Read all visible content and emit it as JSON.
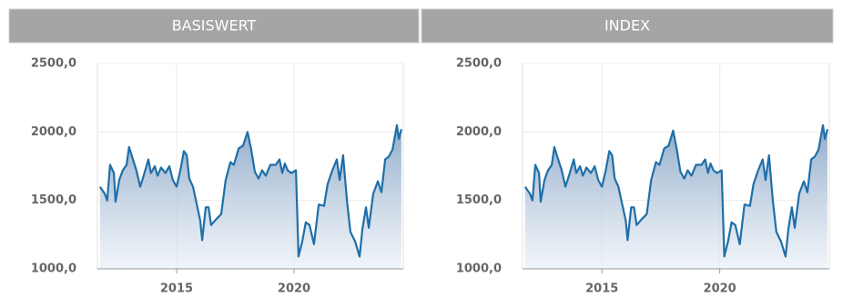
{
  "chart_data": [
    {
      "type": "line",
      "title": "BASISWERT",
      "x": [
        2011.74,
        2011.94,
        2012.05,
        2012.17,
        2012.33,
        2012.4,
        2012.56,
        2012.71,
        2012.87,
        2012.98,
        2013.14,
        2013.29,
        2013.45,
        2013.6,
        2013.8,
        2013.91,
        2014.07,
        2014.19,
        2014.34,
        2014.53,
        2014.69,
        2014.84,
        2015.0,
        2015.16,
        2015.31,
        2015.43,
        2015.54,
        2015.7,
        2015.85,
        2016.01,
        2016.09,
        2016.24,
        2016.36,
        2016.47,
        2016.67,
        2016.9,
        2017.09,
        2017.29,
        2017.44,
        2017.64,
        2017.83,
        2018.02,
        2018.18,
        2018.33,
        2018.49,
        2018.64,
        2018.8,
        2018.99,
        2019.22,
        2019.38,
        2019.5,
        2019.61,
        2019.73,
        2019.88,
        2020.08,
        2020.19,
        2020.35,
        2020.5,
        2020.66,
        2020.85,
        2021.05,
        2021.28,
        2021.43,
        2021.63,
        2021.82,
        2021.94,
        2022.09,
        2022.25,
        2022.4,
        2022.6,
        2022.79,
        2022.91,
        2023.06,
        2023.18,
        2023.37,
        2023.57,
        2023.72,
        2023.88,
        2024.03,
        2024.19,
        2024.38,
        2024.46,
        2024.57
      ],
      "series": [
        {
          "color": "#1f6fa8",
          "values": [
            1600,
            1550,
            1500,
            1760,
            1700,
            1490,
            1650,
            1720,
            1760,
            1890,
            1800,
            1720,
            1600,
            1680,
            1800,
            1700,
            1750,
            1680,
            1740,
            1700,
            1750,
            1650,
            1600,
            1720,
            1860,
            1830,
            1660,
            1600,
            1480,
            1350,
            1210,
            1450,
            1450,
            1320,
            1360,
            1400,
            1650,
            1780,
            1760,
            1880,
            1900,
            2000,
            1870,
            1710,
            1660,
            1720,
            1680,
            1760,
            1760,
            1800,
            1700,
            1770,
            1720,
            1700,
            1720,
            1090,
            1200,
            1340,
            1320,
            1180,
            1470,
            1460,
            1620,
            1720,
            1800,
            1650,
            1830,
            1500,
            1270,
            1200,
            1090,
            1290,
            1450,
            1300,
            1550,
            1640,
            1560,
            1800,
            1820,
            1870,
            2050,
            1950,
            2020
          ]
        }
      ],
      "xlim": [
        2011.63,
        2024.65
      ],
      "xticks": [
        2015,
        2020
      ],
      "ylim": [
        1000,
        2500
      ],
      "yticks": [
        {
          "value": 1000,
          "label": "1000,0"
        },
        {
          "value": 1500,
          "label": "1500,0"
        },
        {
          "value": 2000,
          "label": "2000,0"
        },
        {
          "value": 2500,
          "label": "2500,0"
        }
      ],
      "grid": true
    },
    {
      "type": "line",
      "title": "INDEX",
      "x": [
        2011.74,
        2011.94,
        2012.05,
        2012.17,
        2012.33,
        2012.4,
        2012.56,
        2012.71,
        2012.87,
        2012.98,
        2013.14,
        2013.29,
        2013.45,
        2013.6,
        2013.8,
        2013.91,
        2014.07,
        2014.19,
        2014.34,
        2014.53,
        2014.69,
        2014.84,
        2015.0,
        2015.16,
        2015.31,
        2015.43,
        2015.54,
        2015.7,
        2015.85,
        2016.01,
        2016.09,
        2016.24,
        2016.36,
        2016.47,
        2016.67,
        2016.9,
        2017.09,
        2017.29,
        2017.44,
        2017.64,
        2017.83,
        2018.02,
        2018.18,
        2018.33,
        2018.49,
        2018.64,
        2018.8,
        2018.99,
        2019.22,
        2019.38,
        2019.5,
        2019.61,
        2019.73,
        2019.88,
        2020.08,
        2020.19,
        2020.35,
        2020.5,
        2020.66,
        2020.85,
        2021.05,
        2021.28,
        2021.43,
        2021.63,
        2021.82,
        2021.94,
        2022.09,
        2022.25,
        2022.4,
        2022.6,
        2022.79,
        2022.91,
        2023.06,
        2023.18,
        2023.37,
        2023.57,
        2023.72,
        2023.88,
        2024.03,
        2024.19,
        2024.38,
        2024.46,
        2024.57
      ],
      "series": [
        {
          "color": "#1f6fa8",
          "values": [
            1600,
            1550,
            1500,
            1760,
            1700,
            1490,
            1650,
            1720,
            1760,
            1890,
            1800,
            1720,
            1600,
            1680,
            1800,
            1700,
            1750,
            1680,
            1740,
            1700,
            1750,
            1650,
            1600,
            1720,
            1860,
            1830,
            1660,
            1600,
            1480,
            1350,
            1210,
            1450,
            1450,
            1320,
            1360,
            1400,
            1650,
            1780,
            1760,
            1880,
            1900,
            2010,
            1870,
            1710,
            1660,
            1720,
            1680,
            1760,
            1760,
            1800,
            1700,
            1770,
            1720,
            1700,
            1720,
            1090,
            1200,
            1340,
            1320,
            1180,
            1470,
            1460,
            1620,
            1720,
            1800,
            1650,
            1830,
            1500,
            1270,
            1200,
            1090,
            1290,
            1450,
            1300,
            1550,
            1640,
            1560,
            1800,
            1820,
            1870,
            2050,
            1950,
            2020
          ]
        }
      ],
      "xlim": [
        2011.63,
        2024.65
      ],
      "xticks": [
        2015,
        2020
      ],
      "ylim": [
        1000,
        2500
      ],
      "yticks": [
        {
          "value": 1000,
          "label": "1000,0"
        },
        {
          "value": 1500,
          "label": "1500,0"
        },
        {
          "value": 2000,
          "label": "2000,0"
        },
        {
          "value": 2500,
          "label": "2500,0"
        }
      ],
      "grid": true
    }
  ]
}
